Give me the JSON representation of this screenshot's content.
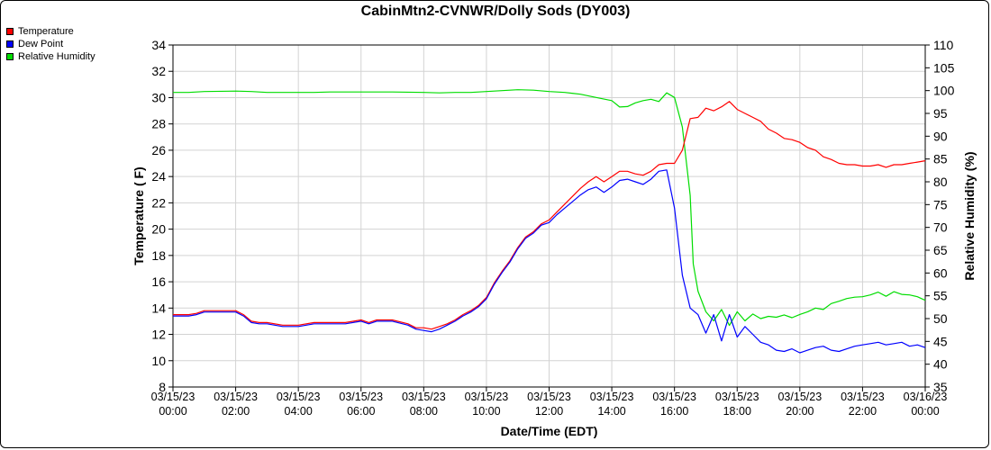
{
  "chart_data": {
    "type": "line",
    "title": "CabinMtn2-CVNWR/Dolly Sods (DY003)",
    "xlabel": "Date/Time (EDT)",
    "ylabel_left": "Temperature ( F)",
    "ylabel_right": "Relative Humidity (%)",
    "x_ticks": [
      {
        "date": "03/15/23",
        "time": "00:00",
        "hour": 0
      },
      {
        "date": "03/15/23",
        "time": "02:00",
        "hour": 2
      },
      {
        "date": "03/15/23",
        "time": "04:00",
        "hour": 4
      },
      {
        "date": "03/15/23",
        "time": "06:00",
        "hour": 6
      },
      {
        "date": "03/15/23",
        "time": "08:00",
        "hour": 8
      },
      {
        "date": "03/15/23",
        "time": "10:00",
        "hour": 10
      },
      {
        "date": "03/15/23",
        "time": "12:00",
        "hour": 12
      },
      {
        "date": "03/15/23",
        "time": "14:00",
        "hour": 14
      },
      {
        "date": "03/15/23",
        "time": "16:00",
        "hour": 16
      },
      {
        "date": "03/15/23",
        "time": "18:00",
        "hour": 18
      },
      {
        "date": "03/15/23",
        "time": "20:00",
        "hour": 20
      },
      {
        "date": "03/15/23",
        "time": "22:00",
        "hour": 22
      },
      {
        "date": "03/16/23",
        "time": "00:00",
        "hour": 24
      }
    ],
    "xlim": [
      0,
      24
    ],
    "ylim_left": [
      8,
      34
    ],
    "yticks_left": [
      8,
      10,
      12,
      14,
      16,
      18,
      20,
      22,
      24,
      26,
      28,
      30,
      32,
      34
    ],
    "ylim_right": [
      35,
      110
    ],
    "yticks_right": [
      35,
      40,
      45,
      50,
      55,
      60,
      65,
      70,
      75,
      80,
      85,
      90,
      95,
      100,
      105,
      110
    ],
    "grid": true,
    "legend_position": "top-left",
    "series": [
      {
        "name": "Temperature",
        "color": "#ff0000",
        "axis": "left",
        "x": [
          0,
          0.5,
          0.75,
          1,
          1.25,
          1.5,
          2,
          2.25,
          2.5,
          2.75,
          3,
          3.5,
          4,
          4.5,
          4.75,
          5,
          5.5,
          6,
          6.25,
          6.5,
          6.75,
          7,
          7.5,
          7.75,
          8,
          8.25,
          8.5,
          8.75,
          9,
          9.25,
          9.5,
          9.75,
          10,
          10.25,
          10.5,
          10.75,
          11,
          11.25,
          11.5,
          11.75,
          12,
          12.25,
          12.5,
          12.75,
          13,
          13.25,
          13.5,
          13.75,
          14,
          14.25,
          14.5,
          14.75,
          15,
          15.25,
          15.5,
          15.75,
          16,
          16.25,
          16.5,
          16.75,
          17,
          17.25,
          17.5,
          17.75,
          18,
          18.25,
          18.5,
          18.75,
          19,
          19.25,
          19.5,
          19.75,
          20,
          20.25,
          20.5,
          20.75,
          21,
          21.25,
          21.5,
          21.75,
          22,
          22.25,
          22.5,
          22.75,
          23,
          23.25,
          23.5,
          23.75,
          24
        ],
        "values": [
          13.5,
          13.5,
          13.6,
          13.8,
          13.8,
          13.8,
          13.8,
          13.5,
          13,
          12.9,
          12.9,
          12.7,
          12.7,
          12.9,
          12.9,
          12.9,
          12.9,
          13.1,
          12.9,
          13.1,
          13.1,
          13.1,
          12.8,
          12.5,
          12.5,
          12.4,
          12.6,
          12.8,
          13.1,
          13.5,
          13.8,
          14.2,
          14.8,
          15.9,
          16.8,
          17.6,
          18.6,
          19.4,
          19.8,
          20.4,
          20.7,
          21.3,
          21.9,
          22.5,
          23.1,
          23.6,
          24,
          23.6,
          24,
          24.4,
          24.4,
          24.2,
          24.1,
          24.4,
          24.9,
          25,
          25,
          26,
          28.4,
          28.5,
          29.2,
          29,
          29.3,
          29.7,
          29.1,
          28.8,
          28.5,
          28.2,
          27.6,
          27.3,
          26.9,
          26.8,
          26.6,
          26.2,
          26,
          25.5,
          25.3,
          25,
          24.9,
          24.9,
          24.8,
          24.8,
          24.9,
          24.7,
          24.9,
          24.9,
          25,
          25.1,
          25.2
        ]
      },
      {
        "name": "Dew Point",
        "color": "#0000ff",
        "axis": "left",
        "x": [
          0,
          0.5,
          0.75,
          1,
          1.25,
          1.5,
          2,
          2.25,
          2.5,
          2.75,
          3,
          3.5,
          4,
          4.5,
          4.75,
          5,
          5.5,
          6,
          6.25,
          6.5,
          6.75,
          7,
          7.5,
          7.75,
          8,
          8.25,
          8.5,
          8.75,
          9,
          9.25,
          9.5,
          9.75,
          10,
          10.25,
          10.5,
          10.75,
          11,
          11.25,
          11.5,
          11.75,
          12,
          12.25,
          12.5,
          12.75,
          13,
          13.25,
          13.5,
          13.75,
          14,
          14.25,
          14.5,
          14.75,
          15,
          15.25,
          15.5,
          15.75,
          16,
          16.25,
          16.5,
          16.75,
          17,
          17.25,
          17.5,
          17.75,
          18,
          18.25,
          18.5,
          18.75,
          19,
          19.25,
          19.5,
          19.75,
          20,
          20.25,
          20.5,
          20.75,
          21,
          21.25,
          21.5,
          21.75,
          22,
          22.25,
          22.5,
          22.75,
          23,
          23.25,
          23.5,
          23.75,
          24
        ],
        "values": [
          13.4,
          13.4,
          13.5,
          13.7,
          13.7,
          13.7,
          13.7,
          13.4,
          12.9,
          12.8,
          12.8,
          12.6,
          12.6,
          12.8,
          12.8,
          12.8,
          12.8,
          13,
          12.8,
          13,
          13,
          13,
          12.7,
          12.4,
          12.3,
          12.2,
          12.4,
          12.7,
          13,
          13.4,
          13.7,
          14.1,
          14.7,
          15.8,
          16.7,
          17.5,
          18.5,
          19.3,
          19.7,
          20.3,
          20.5,
          21.1,
          21.6,
          22.1,
          22.6,
          23,
          23.2,
          22.8,
          23.2,
          23.7,
          23.8,
          23.6,
          23.4,
          23.8,
          24.4,
          24.5,
          21.6,
          16.5,
          14,
          13.5,
          12.1,
          13.5,
          11.5,
          13.5,
          11.8,
          12.6,
          12,
          11.4,
          11.2,
          10.8,
          10.7,
          10.9,
          10.6,
          10.8,
          11,
          11.1,
          10.8,
          10.7,
          10.9,
          11.1,
          11.2,
          11.3,
          11.4,
          11.2,
          11.3,
          11.4,
          11.1,
          11.2,
          11
        ]
      },
      {
        "name": "Relative Humidity",
        "color": "#00dd00",
        "axis": "right",
        "x": [
          0,
          0.5,
          1,
          2,
          2.5,
          3,
          4,
          4.5,
          5,
          6,
          7,
          8,
          8.5,
          9,
          9.5,
          10,
          10.5,
          11,
          11.5,
          12,
          12.5,
          13,
          13.5,
          14,
          14.25,
          14.5,
          14.75,
          15,
          15.25,
          15.5,
          15.75,
          16,
          16.25,
          16.5,
          16.6,
          16.75,
          17,
          17.25,
          17.5,
          17.75,
          18,
          18.25,
          18.5,
          18.75,
          19,
          19.25,
          19.5,
          19.75,
          20,
          20.25,
          20.5,
          20.75,
          21,
          21.25,
          21.5,
          21.75,
          22,
          22.25,
          22.5,
          22.75,
          23,
          23.25,
          23.5,
          23.75,
          24
        ],
        "values": [
          99.6,
          99.6,
          99.8,
          99.9,
          99.8,
          99.6,
          99.6,
          99.6,
          99.7,
          99.7,
          99.7,
          99.6,
          99.5,
          99.6,
          99.6,
          99.8,
          100,
          100.2,
          100.1,
          99.8,
          99.6,
          99.2,
          98.5,
          97.8,
          96.4,
          96.5,
          97.3,
          97.8,
          98.1,
          97.6,
          99.5,
          98.5,
          92,
          77,
          62,
          56,
          51.5,
          49.5,
          52,
          48.5,
          51.5,
          49.5,
          51,
          50,
          50.5,
          50.3,
          50.8,
          50.2,
          50.9,
          51.5,
          52.3,
          52,
          53.3,
          53.8,
          54.4,
          54.7,
          54.8,
          55.2,
          55.8,
          54.9,
          55.9,
          55.3,
          55.2,
          54.8,
          54
        ]
      }
    ]
  }
}
